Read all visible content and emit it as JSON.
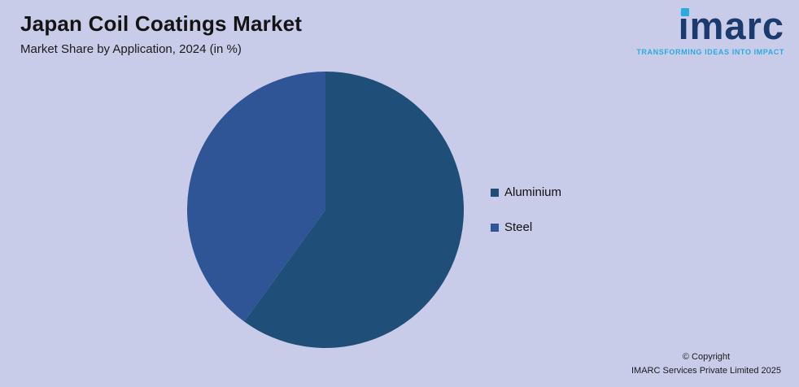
{
  "page": {
    "background": "#c9cce8"
  },
  "header": {
    "title": "Japan Coil Coatings Market",
    "subtitle": "Market Share by Application, 2024 (in %)"
  },
  "logo": {
    "text": "imarc",
    "tagline": "TRANSFORMING IDEAS INTO IMPACT",
    "brand_navy": "#1b3a6e",
    "brand_cyan": "#29abe2"
  },
  "chart_data": {
    "type": "pie",
    "title": "Japan Coil Coatings Market",
    "subtitle": "Market Share by Application, 2024 (in %)",
    "categories": [
      "Aluminium",
      "Steel"
    ],
    "values": [
      60,
      40
    ],
    "colors": [
      "#1f4e79",
      "#2f5597"
    ],
    "start_angle_deg": 0,
    "direction": "clockwise",
    "legend_position": "right",
    "data_labels": false,
    "grid": false
  },
  "legend": {
    "items": [
      {
        "label": "Aluminium",
        "color": "#1f4e79"
      },
      {
        "label": "Steel",
        "color": "#2f5597"
      }
    ]
  },
  "footer": {
    "copyright_line1": "© Copyright",
    "copyright_line2": "IMARC Services Private Limited 2025"
  }
}
